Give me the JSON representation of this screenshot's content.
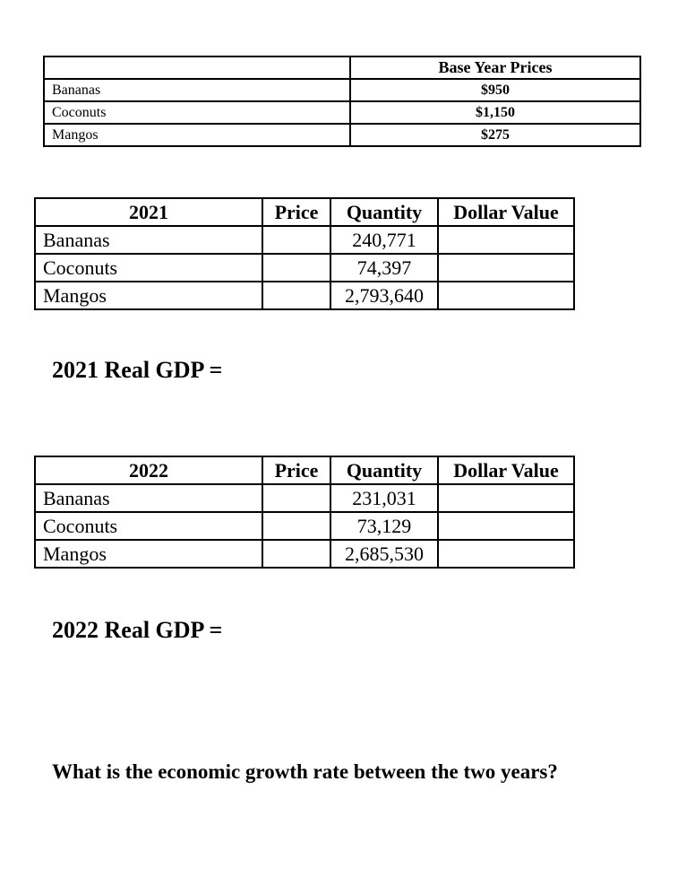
{
  "base_prices": {
    "header": "Base Year Prices",
    "rows": [
      {
        "item": "Bananas",
        "price": "$950"
      },
      {
        "item": "Coconuts",
        "price": "$1,150"
      },
      {
        "item": "Mangos",
        "price": "$275"
      }
    ]
  },
  "table_2021": {
    "headers": {
      "year": "2021",
      "price": "Price",
      "quantity": "Quantity",
      "dollar_value": "Dollar Value"
    },
    "rows": [
      {
        "item": "Bananas",
        "price": "",
        "quantity": "240,771",
        "dollar_value": ""
      },
      {
        "item": "Coconuts",
        "price": "",
        "quantity": "74,397",
        "dollar_value": ""
      },
      {
        "item": "Mangos",
        "price": "",
        "quantity": "2,793,640",
        "dollar_value": ""
      }
    ]
  },
  "gdp_2021_label": "2021 Real GDP =",
  "table_2022": {
    "headers": {
      "year": "2022",
      "price": "Price",
      "quantity": "Quantity",
      "dollar_value": "Dollar Value"
    },
    "rows": [
      {
        "item": "Bananas",
        "price": "",
        "quantity": "231,031",
        "dollar_value": ""
      },
      {
        "item": "Coconuts",
        "price": "",
        "quantity": "73,129",
        "dollar_value": ""
      },
      {
        "item": "Mangos",
        "price": "",
        "quantity": "2,685,530",
        "dollar_value": ""
      }
    ]
  },
  "gdp_2022_label": "2022 Real GDP =",
  "question": "What is the economic growth rate between the two years?"
}
